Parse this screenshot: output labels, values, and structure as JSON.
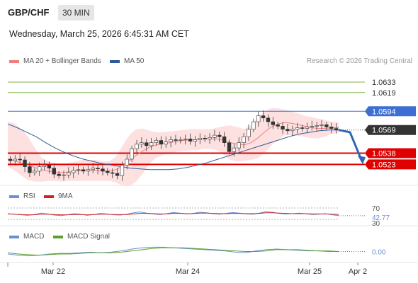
{
  "header": {
    "symbol": "GBP/CHF",
    "timeframe": "30 MIN",
    "datetime": "Wednesday, March 25, 2026 6:45:31 AM CET",
    "credit": "Research © 2026 Trading Central"
  },
  "legend_main": [
    {
      "label": "MA 20 + Bollinger Bands",
      "color": "#f08080"
    },
    {
      "label": "MA 50",
      "color": "#2f5d9b"
    }
  ],
  "legend_rsi": [
    {
      "label": "RSI",
      "color": "#6b8fd6"
    },
    {
      "label": "9MA",
      "color": "#d42020"
    }
  ],
  "legend_macd": [
    {
      "label": "MACD",
      "color": "#6b8fd6"
    },
    {
      "label": "MACD Signal",
      "color": "#5aa02c"
    }
  ],
  "colors": {
    "resistance": "#7cb342",
    "pivot": "#3c6fd1",
    "support": "#e00000",
    "current": "#333333",
    "arrow": "#2f66b3",
    "band": "#fde0e0",
    "candle_up": "#2e7d32",
    "candle_down": "#c62828"
  },
  "chart_data": {
    "type": "candlestick",
    "price_axis": {
      "min": 1.0495,
      "max": 1.065
    },
    "levels": [
      {
        "label": "1.0633",
        "value": 1.0633,
        "kind": "resistance"
      },
      {
        "label": "1.0619",
        "value": 1.0619,
        "kind": "resistance"
      },
      {
        "label": "1.0594",
        "value": 1.0594,
        "kind": "pivot"
      },
      {
        "label": "1.0569",
        "value": 1.0569,
        "kind": "current"
      },
      {
        "label": "1.0538",
        "value": 1.0538,
        "kind": "support"
      },
      {
        "label": "1.0523",
        "value": 1.0523,
        "kind": "support"
      }
    ],
    "forecast": [
      1.0569,
      1.0566,
      1.0527
    ],
    "x_ticks": [
      "Mar 22",
      "Mar 24",
      "Mar 25",
      "Apr 2"
    ],
    "price_path": [
      1.0528,
      1.053,
      1.0529,
      1.052,
      1.0512,
      1.0514,
      1.052,
      1.0522,
      1.0518,
      1.051,
      1.0508,
      1.0509,
      1.0512,
      1.0515,
      1.0516,
      1.0514,
      1.0516,
      1.0518,
      1.0517,
      1.0514,
      1.0512,
      1.0511,
      1.0508,
      1.0522,
      1.053,
      1.0544,
      1.055,
      1.0552,
      1.0548,
      1.0552,
      1.0555,
      1.055,
      1.0553,
      1.0556,
      1.0555,
      1.0556,
      1.0557,
      1.0554,
      1.0556,
      1.0558,
      1.0557,
      1.0559,
      1.0562,
      1.056,
      1.0552,
      1.054,
      1.0545,
      1.0552,
      1.056,
      1.057,
      1.058,
      1.0588,
      1.0585,
      1.058,
      1.0576,
      1.0574,
      1.057,
      1.0568,
      1.057,
      1.0572,
      1.0571,
      1.0573,
      1.0574,
      1.0575,
      1.0576,
      1.0573,
      1.0571,
      1.0569
    ],
    "ma50": [
      1.0577,
      1.0572,
      1.0566,
      1.056,
      1.0552,
      1.0545,
      1.0539,
      1.0534,
      1.053,
      1.0527,
      1.0524,
      1.0522,
      1.052,
      1.0518,
      1.0517,
      1.0516,
      1.0516,
      1.0516,
      1.0517,
      1.0519,
      1.0522,
      1.0525,
      1.0529,
      1.0533,
      1.0537,
      1.0541,
      1.0545,
      1.0549,
      1.0553,
      1.0557,
      1.0561,
      1.0564,
      1.0566,
      1.0568,
      1.0569,
      1.0569
    ],
    "ma20": [
      1.053,
      1.0528,
      1.0525,
      1.0522,
      1.0519,
      1.0516,
      1.0514,
      1.0513,
      1.0512,
      1.0513,
      1.0514,
      1.0515,
      1.0515,
      1.0515,
      1.0514,
      1.0514,
      1.0516,
      1.0521,
      1.0528,
      1.0535,
      1.0541,
      1.0546,
      1.0549,
      1.0551,
      1.0552,
      1.0554,
      1.0555,
      1.0556,
      1.0556,
      1.0557,
      1.0557,
      1.0557,
      1.0555,
      1.0552,
      1.055,
      1.0549,
      1.0552,
      1.0558,
      1.0566,
      1.0573,
      1.0577,
      1.0579,
      1.0578,
      1.0576,
      1.0574,
      1.0572,
      1.0571,
      1.0571,
      1.0572,
      1.0572
    ],
    "bb_upper": [
      1.058,
      1.0578,
      1.057,
      1.056,
      1.0545,
      1.0532,
      1.0527,
      1.0525,
      1.0524,
      1.0525,
      1.0527,
      1.0529,
      1.0529,
      1.0529,
      1.0527,
      1.0527,
      1.0533,
      1.0548,
      1.0562,
      1.057,
      1.0571,
      1.0568,
      1.0566,
      1.0566,
      1.0567,
      1.0568,
      1.0569,
      1.057,
      1.057,
      1.057,
      1.057,
      1.0572,
      1.0574,
      1.0575,
      1.0573,
      1.057,
      1.0575,
      1.0585,
      1.0594,
      1.0598,
      1.0598,
      1.0596,
      1.0594,
      1.0591,
      1.0588,
      1.0586,
      1.0584,
      1.0582,
      1.058,
      1.0579
    ],
    "bb_lower": [
      1.052,
      1.0515,
      1.0508,
      1.0502,
      1.05,
      1.05,
      1.0501,
      1.0501,
      1.05,
      1.0501,
      1.0501,
      1.0501,
      1.0501,
      1.0501,
      1.0501,
      1.0501,
      1.0499,
      1.0494,
      1.0494,
      1.05,
      1.0511,
      1.0524,
      1.0532,
      1.0536,
      1.0537,
      1.054,
      1.0541,
      1.0542,
      1.0542,
      1.0544,
      1.0544,
      1.0542,
      1.0536,
      1.0529,
      1.0527,
      1.0528,
      1.0529,
      1.0531,
      1.0538,
      1.0548,
      1.0556,
      1.0562,
      1.0562,
      1.0561,
      1.056,
      1.0558,
      1.0558,
      1.056,
      1.0564,
      1.0565
    ],
    "rsi": {
      "min": 20,
      "max": 80,
      "levels": [
        70,
        30
      ],
      "labels": [
        "70",
        "42.77",
        "30"
      ],
      "last": 42.77,
      "rsi": [
        50,
        48,
        46,
        44,
        47,
        52,
        49,
        45,
        43,
        46,
        50,
        48,
        44,
        47,
        51,
        49,
        46,
        45,
        48,
        53,
        56,
        52,
        49,
        47,
        50,
        54,
        52,
        49,
        51,
        55,
        53,
        50,
        48,
        51,
        54,
        52,
        49,
        48,
        52,
        57,
        55,
        51,
        49,
        50,
        52,
        50,
        47,
        48,
        50,
        46,
        43
      ],
      "ma9": [
        49,
        48,
        47,
        46,
        46,
        48,
        48,
        47,
        46,
        46,
        47,
        47,
        46,
        47,
        48,
        48,
        47,
        47,
        47,
        49,
        51,
        51,
        50,
        49,
        49,
        51,
        51,
        50,
        50,
        52,
        52,
        51,
        50,
        50,
        51,
        51,
        50,
        50,
        51,
        53,
        53,
        52,
        51,
        50,
        50,
        50,
        49,
        49,
        49,
        48,
        47
      ]
    },
    "macd": {
      "min": -0.0012,
      "max": 0.0012,
      "labels": [
        "0.00"
      ],
      "zero": 0,
      "macd": [
        -0.0004,
        -0.0006,
        -0.0007,
        -0.0006,
        -0.0004,
        -0.0003,
        -0.0003,
        -0.0002,
        -0.0001,
        -0.0002,
        -0.0001,
        0.0001,
        0.0004,
        0.0006,
        0.0007,
        0.0007,
        0.0006,
        0.0005,
        0.0004,
        0.0003,
        0.0002,
        0.0001,
        -0.0001,
        -0.0002,
        0.0001,
        0.0003,
        0.0004,
        0.0003,
        0.0002,
        0.0001,
        0.0001,
        0.0,
        0.0
      ],
      "signal": [
        -0.0002,
        -0.0004,
        -0.0005,
        -0.0006,
        -0.0005,
        -0.0004,
        -0.0004,
        -0.0003,
        -0.0002,
        -0.0002,
        -0.0002,
        -0.0001,
        0.0001,
        0.0003,
        0.0005,
        0.0006,
        0.0006,
        0.0006,
        0.0005,
        0.0004,
        0.0003,
        0.0002,
        0.0001,
        0.0,
        0.0,
        0.0001,
        0.0003,
        0.0003,
        0.0003,
        0.0002,
        0.0001,
        0.0001,
        0.0
      ]
    }
  }
}
